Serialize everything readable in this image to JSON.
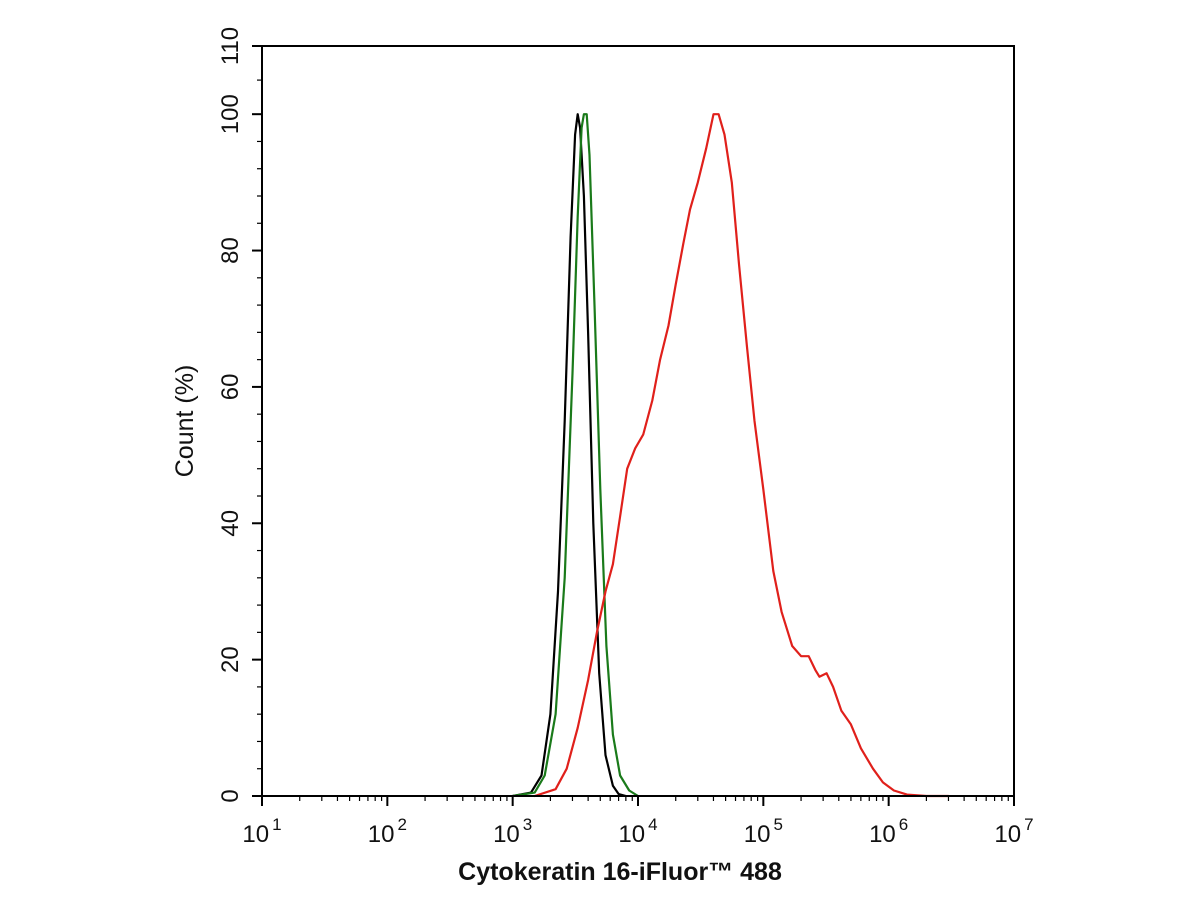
{
  "chart_data": {
    "type": "line",
    "title": "",
    "xlabel": "Cytokeratin 16-iFluor™ 488",
    "ylabel": "Count  (%)",
    "xscale": "log",
    "xlim": [
      10,
      10000000
    ],
    "ylim": [
      0,
      110
    ],
    "x_ticks": [
      {
        "base": "10",
        "exp": "1"
      },
      {
        "base": "10",
        "exp": "2"
      },
      {
        "base": "10",
        "exp": "3"
      },
      {
        "base": "10",
        "exp": "4"
      },
      {
        "base": "10",
        "exp": "5"
      },
      {
        "base": "10",
        "exp": "6"
      },
      {
        "base": "10",
        "exp": "7"
      }
    ],
    "y_ticks": [
      "0",
      "20",
      "40",
      "60",
      "80",
      "100",
      "110"
    ],
    "grid": false,
    "legend": "none",
    "series": [
      {
        "color": "#000000",
        "points": [
          [
            1000,
            0
          ],
          [
            1400,
            0.5
          ],
          [
            1700,
            3
          ],
          [
            2000,
            12
          ],
          [
            2300,
            30
          ],
          [
            2600,
            55
          ],
          [
            2900,
            82
          ],
          [
            3150,
            97
          ],
          [
            3300,
            100
          ],
          [
            3450,
            98
          ],
          [
            3700,
            88
          ],
          [
            4000,
            68
          ],
          [
            4400,
            40
          ],
          [
            4900,
            18
          ],
          [
            5500,
            6
          ],
          [
            6300,
            1.5
          ],
          [
            7000,
            0.3
          ],
          [
            8000,
            0
          ]
        ]
      },
      {
        "color": "#1a7a1a",
        "points": [
          [
            1000,
            0
          ],
          [
            1500,
            0.5
          ],
          [
            1800,
            3
          ],
          [
            2200,
            12
          ],
          [
            2600,
            32
          ],
          [
            3000,
            62
          ],
          [
            3300,
            85
          ],
          [
            3550,
            98
          ],
          [
            3700,
            100
          ],
          [
            3900,
            100
          ],
          [
            4100,
            94
          ],
          [
            4500,
            72
          ],
          [
            5000,
            45
          ],
          [
            5600,
            22
          ],
          [
            6300,
            9
          ],
          [
            7200,
            3
          ],
          [
            8500,
            0.8
          ],
          [
            10000,
            0
          ]
        ]
      },
      {
        "color": "#e0201b",
        "points": [
          [
            1500,
            0
          ],
          [
            2200,
            1
          ],
          [
            2700,
            4
          ],
          [
            3300,
            10
          ],
          [
            4000,
            17
          ],
          [
            4700,
            24
          ],
          [
            5500,
            30
          ],
          [
            6300,
            34
          ],
          [
            7200,
            41
          ],
          [
            8200,
            48
          ],
          [
            9500,
            51
          ],
          [
            11000,
            53
          ],
          [
            13000,
            58
          ],
          [
            15000,
            64
          ],
          [
            17500,
            69
          ],
          [
            20000,
            75
          ],
          [
            23000,
            81
          ],
          [
            26000,
            86
          ],
          [
            30000,
            90
          ],
          [
            35000,
            95
          ],
          [
            40000,
            100
          ],
          [
            44000,
            100
          ],
          [
            49000,
            97
          ],
          [
            56000,
            90
          ],
          [
            64000,
            78
          ],
          [
            74000,
            66
          ],
          [
            85000,
            55
          ],
          [
            100000,
            45
          ],
          [
            120000,
            33
          ],
          [
            140000,
            27
          ],
          [
            170000,
            22
          ],
          [
            200000,
            20.5
          ],
          [
            230000,
            20.5
          ],
          [
            260000,
            18.5
          ],
          [
            280000,
            17.5
          ],
          [
            320000,
            18
          ],
          [
            360000,
            16
          ],
          [
            420000,
            12.5
          ],
          [
            500000,
            10.5
          ],
          [
            600000,
            7
          ],
          [
            750000,
            4
          ],
          [
            900000,
            2
          ],
          [
            1100000,
            0.8
          ],
          [
            1400000,
            0.2
          ],
          [
            2000000,
            0
          ],
          [
            3000000,
            0
          ]
        ]
      }
    ]
  }
}
